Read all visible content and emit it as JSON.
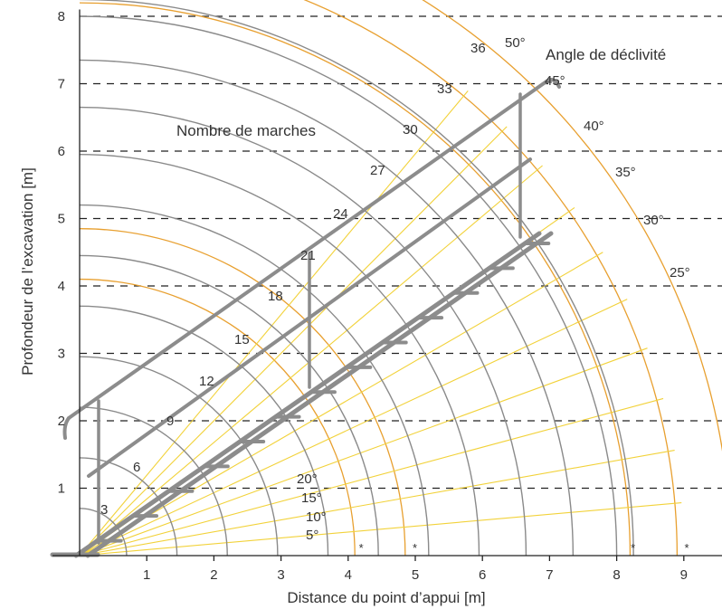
{
  "chart_data": {
    "type": "diagram",
    "xlabel": "Distance du point d’appui [m]",
    "ylabel": "Profondeur de l’excavation [m]",
    "xlim": [
      -0.45,
      9.7
    ],
    "ylim": [
      0,
      8
    ],
    "x_ticks": [
      "1",
      "2",
      "3",
      "4",
      "5",
      "6",
      "7",
      "8",
      "9"
    ],
    "y_ticks": [
      "1",
      "2",
      "3",
      "4",
      "5",
      "6",
      "7",
      "8"
    ],
    "grid": "dashed horizontal",
    "annotations": {
      "steps_heading": "Nombre de marches",
      "angle_heading": "Angle de déclivité"
    },
    "step_arcs": {
      "color": "#8a8a8a",
      "labels": [
        "3",
        "6",
        "9",
        "12",
        "15",
        "18",
        "21",
        "24",
        "27",
        "30",
        "33",
        "36"
      ],
      "radius_m": [
        0.7,
        1.45,
        2.2,
        2.95,
        3.7,
        4.45,
        5.2,
        5.95,
        6.65,
        7.35,
        8.0,
        8.25
      ]
    },
    "angle_rays": {
      "color": "#f2d23a",
      "labels": [
        "5°",
        "10°",
        "15°",
        "20°",
        "25°",
        "30°",
        "35°",
        "40°",
        "45°",
        "50°"
      ],
      "degrees": [
        5,
        10,
        15,
        20,
        25,
        30,
        35,
        40,
        45,
        50
      ]
    },
    "outer_arcs": {
      "color": "#e8a030",
      "radius_m": [
        4.1,
        4.85,
        8.2,
        8.9,
        9.7
      ],
      "marker": "*",
      "marker_x": [
        4.2,
        5.0,
        8.25,
        9.05
      ]
    },
    "stair_drawing": {
      "color": "#8c8c8c",
      "stair_top": [
        7.2,
        4.75
      ],
      "handrail_top": [
        7.25,
        7.0
      ]
    }
  }
}
